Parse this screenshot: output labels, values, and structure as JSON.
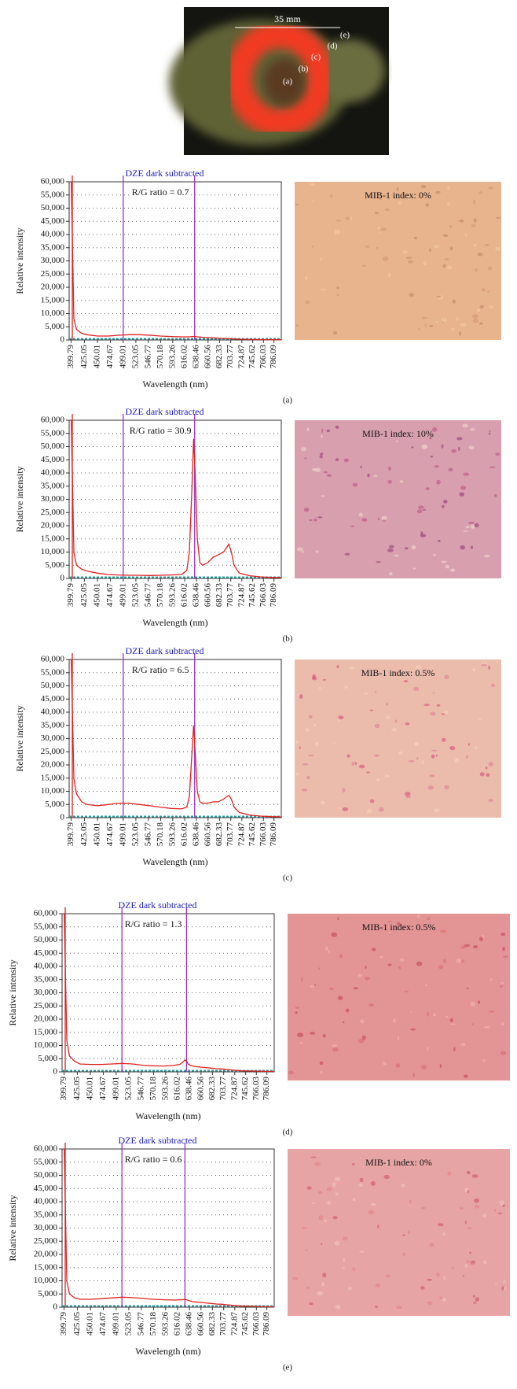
{
  "photo": {
    "scale_label": "35 mm",
    "labels": [
      "(a)",
      "(b)",
      "(c)",
      "(d)",
      "(e)"
    ]
  },
  "chart_data": [
    {
      "type": "line",
      "panel_label": "(a)",
      "title": "DZE dark subtracted",
      "annotation": "R/G ratio = 0.7",
      "histology_label": "MIB-1 index: 0%",
      "xlabel": "Wavelength (nm)",
      "ylabel": "Relative intensity",
      "xlim": [
        396,
        800
      ],
      "xticks": [
        399.79,
        425.05,
        450.01,
        474.67,
        499.01,
        523.05,
        546.77,
        570.18,
        593.26,
        616.02,
        638.46,
        660.56,
        682.33,
        703.77,
        724.87,
        745.62,
        766.03,
        786.09
      ],
      "ylim": [
        0,
        60000
      ],
      "yticks": [
        0,
        {
          "value": 5000,
          "label": "5,000"
        },
        {
          "value": 10000,
          "label": "10,000"
        },
        {
          "value": 15000,
          "label": "15,000"
        },
        {
          "value": 20000,
          "label": "20,000"
        },
        {
          "value": 25000,
          "label": "25,000"
        },
        {
          "value": 30000,
          "label": "30,000"
        },
        {
          "value": 35000,
          "label": "35,000"
        },
        {
          "value": 40000,
          "label": "40,000"
        },
        {
          "value": 45000,
          "label": "45,000"
        },
        {
          "value": 50000,
          "label": "50,000"
        },
        {
          "value": 55000,
          "label": "55,000"
        },
        {
          "value": 60000,
          "label": "60,000"
        }
      ],
      "grid": true,
      "markers": [
        {
          "value": 402,
          "color": "#e02020"
        },
        {
          "value": 499.01,
          "color": "#9b30c0"
        },
        {
          "value": 635,
          "color": "#9b30c0"
        }
      ],
      "x": [
        400,
        405,
        410,
        420,
        430,
        450,
        470,
        490,
        510,
        530,
        550,
        570,
        590,
        610,
        620,
        625,
        630,
        633,
        636,
        640,
        645,
        650,
        660,
        670,
        680,
        690,
        700,
        705,
        710,
        720,
        740,
        760,
        780,
        800
      ],
      "series": [
        {
          "color": "#e02020",
          "values": [
            60000,
            8000,
            4000,
            2500,
            2000,
            1500,
            1500,
            1800,
            2000,
            2000,
            1800,
            1500,
            1300,
            1200,
            1200,
            1200,
            1300,
            1300,
            1300,
            1200,
            1100,
            1000,
            900,
            800,
            700,
            600,
            500,
            500,
            400,
            300,
            200,
            150,
            100,
            100
          ]
        }
      ]
    },
    {
      "type": "line",
      "panel_label": "(b)",
      "title": "DZE dark subtracted",
      "annotation": "R/G ratio = 30.9",
      "histology_label": "MIB-1 index: 10%",
      "xlabel": "Wavelength (nm)",
      "ylabel": "Relative intensity",
      "xlim": [
        396,
        800
      ],
      "xticks": [
        399.79,
        425.05,
        450.01,
        474.67,
        499.01,
        523.05,
        546.77,
        570.18,
        593.26,
        616.02,
        638.46,
        660.56,
        682.33,
        703.77,
        724.87,
        745.62,
        766.03,
        786.09
      ],
      "ylim": [
        0,
        60000
      ],
      "yticks": [
        0,
        {
          "value": 5000,
          "label": "5,000"
        },
        {
          "value": 10000,
          "label": "10,000"
        },
        {
          "value": 15000,
          "label": "15,000"
        },
        {
          "value": 20000,
          "label": "20,000"
        },
        {
          "value": 25000,
          "label": "25,000"
        },
        {
          "value": 30000,
          "label": "30,000"
        },
        {
          "value": 35000,
          "label": "35,000"
        },
        {
          "value": 40000,
          "label": "40,000"
        },
        {
          "value": 45000,
          "label": "45,000"
        },
        {
          "value": 50000,
          "label": "50,000"
        },
        {
          "value": 55000,
          "label": "55,000"
        },
        {
          "value": 60000,
          "label": "60,000"
        }
      ],
      "grid": true,
      "markers": [
        {
          "value": 402,
          "color": "#e02020"
        },
        {
          "value": 499.01,
          "color": "#9b30c0"
        },
        {
          "value": 635,
          "color": "#9b30c0"
        }
      ],
      "x": [
        400,
        405,
        410,
        420,
        430,
        450,
        470,
        490,
        510,
        530,
        550,
        570,
        590,
        610,
        620,
        625,
        630,
        633,
        636,
        640,
        645,
        650,
        660,
        670,
        680,
        690,
        700,
        705,
        710,
        720,
        740,
        760,
        780,
        800
      ],
      "series": [
        {
          "color": "#e02020",
          "values": [
            60000,
            10000,
            5000,
            3500,
            2800,
            2000,
            1500,
            1300,
            1200,
            1200,
            1100,
            1200,
            1300,
            1500,
            3000,
            10000,
            35000,
            53000,
            40000,
            15000,
            6000,
            5000,
            6000,
            8000,
            9000,
            10000,
            13000,
            10000,
            5000,
            2000,
            1000,
            600,
            400,
            300
          ]
        }
      ]
    },
    {
      "type": "line",
      "panel_label": "(c)",
      "title": "DZE dark subtracted",
      "annotation": "R/G ratio = 6.5",
      "histology_label": "MIB-1 index: 0.5%",
      "xlabel": "Wavelength (nm)",
      "ylabel": "Relative intensity",
      "xlim": [
        396,
        800
      ],
      "xticks": [
        399.79,
        425.05,
        450.01,
        474.67,
        499.01,
        523.05,
        546.77,
        570.18,
        593.26,
        616.02,
        638.46,
        660.56,
        682.33,
        703.77,
        724.87,
        745.62,
        766.03,
        786.09
      ],
      "ylim": [
        0,
        60000
      ],
      "yticks": [
        0,
        {
          "value": 5000,
          "label": "5,000"
        },
        {
          "value": 10000,
          "label": "10,000"
        },
        {
          "value": 15000,
          "label": "15,000"
        },
        {
          "value": 20000,
          "label": "20,000"
        },
        {
          "value": 25000,
          "label": "25,000"
        },
        {
          "value": 30000,
          "label": "30,000"
        },
        {
          "value": 35000,
          "label": "35,000"
        },
        {
          "value": 40000,
          "label": "40,000"
        },
        {
          "value": 45000,
          "label": "45,000"
        },
        {
          "value": 50000,
          "label": "50,000"
        },
        {
          "value": 55000,
          "label": "55,000"
        },
        {
          "value": 60000,
          "label": "60,000"
        }
      ],
      "grid": true,
      "markers": [
        {
          "value": 402,
          "color": "#e02020"
        },
        {
          "value": 499.01,
          "color": "#9b30c0"
        },
        {
          "value": 635,
          "color": "#9b30c0"
        }
      ],
      "x": [
        400,
        405,
        410,
        420,
        430,
        450,
        470,
        490,
        510,
        530,
        550,
        570,
        590,
        610,
        620,
        625,
        630,
        633,
        636,
        640,
        645,
        650,
        660,
        670,
        680,
        690,
        700,
        705,
        710,
        720,
        740,
        760,
        780,
        800
      ],
      "series": [
        {
          "color": "#e02020",
          "values": [
            60000,
            15000,
            9000,
            6000,
            5000,
            4500,
            5000,
            5500,
            5500,
            5000,
            4500,
            4000,
            3500,
            3300,
            4000,
            8000,
            25000,
            35000,
            25000,
            10000,
            6000,
            5500,
            5500,
            6000,
            6000,
            7000,
            8500,
            7000,
            4000,
            2000,
            1000,
            600,
            400,
            300
          ]
        }
      ]
    },
    {
      "type": "line",
      "panel_label": "(d)",
      "title": "DZE dark subtracted",
      "annotation": "R/G ratio = 1.3",
      "histology_label": "MIB-1 index: 0.5%",
      "xlabel": "Wavelength (nm)",
      "ylabel": "Relative intensity",
      "xlim": [
        396,
        800
      ],
      "xticks": [
        399.79,
        425.05,
        450.01,
        474.67,
        499.01,
        523.05,
        546.77,
        570.18,
        593.26,
        616.02,
        638.46,
        660.56,
        682.33,
        703.77,
        724.87,
        745.62,
        766.03,
        786.09
      ],
      "ylim": [
        0,
        60000
      ],
      "yticks": [
        0,
        {
          "value": 5000,
          "label": "5,000"
        },
        {
          "value": 10000,
          "label": "10,000"
        },
        {
          "value": 15000,
          "label": "15,000"
        },
        {
          "value": 20000,
          "label": "20,000"
        },
        {
          "value": 25000,
          "label": "25,000"
        },
        {
          "value": 30000,
          "label": "30,000"
        },
        {
          "value": 35000,
          "label": "35,000"
        },
        {
          "value": 40000,
          "label": "40,000"
        },
        {
          "value": 45000,
          "label": "45,000"
        },
        {
          "value": 50000,
          "label": "50,000"
        },
        {
          "value": 55000,
          "label": "55,000"
        },
        {
          "value": 60000,
          "label": "60,000"
        }
      ],
      "grid": true,
      "markers": [
        {
          "value": 402,
          "color": "#e02020"
        },
        {
          "value": 510,
          "color": "#9b30c0"
        },
        {
          "value": 633,
          "color": "#9b30c0"
        }
      ],
      "x": [
        400,
        405,
        410,
        420,
        430,
        450,
        470,
        490,
        510,
        530,
        550,
        570,
        590,
        610,
        620,
        625,
        630,
        633,
        636,
        640,
        645,
        650,
        660,
        670,
        680,
        690,
        700,
        705,
        710,
        720,
        740,
        760,
        780,
        800
      ],
      "series": [
        {
          "color": "#e02020",
          "values": [
            60000,
            12000,
            6000,
            4000,
            3000,
            2800,
            2800,
            3000,
            3200,
            3000,
            2500,
            2300,
            2200,
            2500,
            2800,
            3500,
            4500,
            4000,
            3000,
            2500,
            2200,
            2000,
            1800,
            1600,
            1400,
            1200,
            1100,
            1000,
            900,
            700,
            400,
            300,
            200,
            150
          ]
        }
      ]
    },
    {
      "type": "line",
      "panel_label": "(e)",
      "title": "DZE dark subtracted",
      "annotation": "R/G ratio = 0.6",
      "histology_label": "MIB-1 index: 0%",
      "xlabel": "Wavelength (nm)",
      "ylabel": "Relative intensity",
      "xlim": [
        396,
        800
      ],
      "xticks": [
        399.79,
        425.05,
        450.01,
        474.67,
        499.01,
        523.05,
        546.77,
        570.18,
        593.26,
        616.02,
        638.46,
        660.56,
        682.33,
        703.77,
        724.87,
        745.62,
        766.03,
        786.09
      ],
      "ylim": [
        0,
        60000
      ],
      "yticks": [
        0,
        {
          "value": 5000,
          "label": "5,000"
        },
        {
          "value": 10000,
          "label": "10,000"
        },
        {
          "value": 15000,
          "label": "15,000"
        },
        {
          "value": 20000,
          "label": "20,000"
        },
        {
          "value": 25000,
          "label": "25,000"
        },
        {
          "value": 30000,
          "label": "30,000"
        },
        {
          "value": 35000,
          "label": "35,000"
        },
        {
          "value": 40000,
          "label": "40,000"
        },
        {
          "value": 45000,
          "label": "45,000"
        },
        {
          "value": 50000,
          "label": "50,000"
        },
        {
          "value": 55000,
          "label": "55,000"
        },
        {
          "value": 60000,
          "label": "60,000"
        }
      ],
      "grid": true,
      "markers": [
        {
          "value": 402,
          "color": "#e02020"
        },
        {
          "value": 510,
          "color": "#9b30c0"
        },
        {
          "value": 630,
          "color": "#9b30c0"
        }
      ],
      "x": [
        400,
        405,
        410,
        420,
        430,
        450,
        470,
        490,
        510,
        530,
        550,
        570,
        590,
        610,
        620,
        625,
        630,
        633,
        636,
        640,
        645,
        650,
        660,
        670,
        680,
        690,
        700,
        705,
        710,
        720,
        740,
        760,
        780,
        800
      ],
      "series": [
        {
          "color": "#e02020",
          "values": [
            60000,
            10000,
            5000,
            3500,
            3000,
            3000,
            3200,
            3500,
            3800,
            3600,
            3300,
            3000,
            2800,
            2700,
            2800,
            2800,
            3000,
            2800,
            2600,
            2300,
            2100,
            2000,
            1800,
            1600,
            1400,
            1200,
            1100,
            1000,
            900,
            700,
            400,
            300,
            200,
            150
          ]
        }
      ]
    }
  ]
}
